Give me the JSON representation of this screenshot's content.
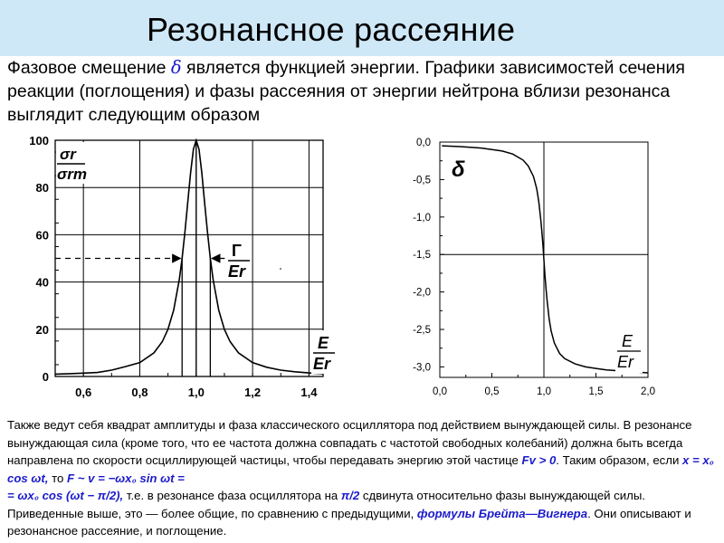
{
  "slide": {
    "title": "Резонансное рассеяние",
    "title_bar_color": "#cfe8f7",
    "intro": {
      "part1": "Фазовое смещение",
      "delta": "δ",
      "part2": "является функцией энергии. Графики зависимостей сечения реакции (поглощения) и фазы рассеяния от энергии нейтрона вблизи резонанса выглядит следующим образом"
    },
    "bottom": {
      "t1": "Также ведут себя квадрат амплитуды и фаза классического осциллятора под действием вынуждающей силы. В резонансе вынуждающая сила (кроме того, что ее частота должна совпадать с частотой свободных колебаний) должна быть всегда направлена по скорости осциллирующей частицы, чтобы передавать энергию этой частице ",
      "f1": "Fv > 0",
      "t2": ". Таким образом, если ",
      "f2": "x = x₀ cos ωt,",
      "t3": " то ",
      "f3": "F ~ v = −ωx₀ sin ωt =",
      "f4": "= ωx₀ cos (ωt − π/2),",
      "t4": " т.е. в резонансе фаза осциллятора на ",
      "f5": "π/2",
      "t5": " сдвинута относительно фазы вынуждающей силы. Приведенные выше, это — более общие, по сравнению с предыдущими, ",
      "link": "формулы Брейта—Вигнера",
      "t6": ". Они описывают и резонансное рассеяние, и поглощение."
    }
  },
  "chart_data": [
    {
      "type": "line",
      "ylabel_num": "σr",
      "ylabel_den": "σrm",
      "xlabel_num": "E",
      "xlabel_den": "Er",
      "width_label_num": "Γ",
      "width_label_den": "Er",
      "x_ticks": [
        "0,6",
        "0,8",
        "1,0",
        "1,2",
        "1,4"
      ],
      "y_ticks": [
        "0",
        "20",
        "40",
        "60",
        "80",
        "100"
      ],
      "xlim": [
        0.5,
        1.45
      ],
      "ylim": [
        0,
        100
      ],
      "grid": true,
      "resonance": {
        "E0": 1.0,
        "gamma": 0.1
      },
      "x": [
        0.5,
        0.55,
        0.6,
        0.65,
        0.7,
        0.75,
        0.8,
        0.85,
        0.88,
        0.9,
        0.92,
        0.94,
        0.95,
        0.96,
        0.97,
        0.98,
        0.99,
        1.0,
        1.01,
        1.02,
        1.03,
        1.04,
        1.05,
        1.06,
        1.08,
        1.1,
        1.12,
        1.15,
        1.2,
        1.25,
        1.3,
        1.35,
        1.4,
        1.45
      ],
      "series": [
        {
          "values": [
            1.0,
            1.2,
            1.4,
            1.7,
            2.7,
            4.2,
            5.9,
            10.0,
            14.8,
            20.0,
            28.1,
            41.0,
            50.0,
            61.0,
            73.5,
            86.2,
            96.2,
            100.0,
            96.2,
            86.2,
            73.5,
            61.0,
            50.0,
            41.0,
            28.1,
            20.0,
            14.8,
            10.0,
            5.9,
            3.9,
            2.7,
            2.0,
            1.5,
            1.2
          ]
        }
      ]
    },
    {
      "type": "line",
      "ylabel": "δ",
      "xlabel_num": "E",
      "xlabel_den": "Er",
      "x_ticks": [
        "0,0",
        "0,5",
        "1,0",
        "1,5",
        "2,0"
      ],
      "y_ticks": [
        "0,0",
        "-0,5",
        "-1,0",
        "-1,5",
        "-2,0",
        "-2,5",
        "-3,0"
      ],
      "xlim": [
        0,
        2
      ],
      "ylim": [
        -3.14,
        0
      ],
      "grid": true,
      "x": [
        0.02,
        0.2,
        0.4,
        0.5,
        0.6,
        0.7,
        0.8,
        0.85,
        0.9,
        0.93,
        0.95,
        0.97,
        0.98,
        0.99,
        1.0,
        1.01,
        1.02,
        1.03,
        1.05,
        1.07,
        1.1,
        1.15,
        1.2,
        1.3,
        1.4,
        1.5,
        1.6,
        1.8,
        2.0
      ],
      "series": [
        {
          "values": [
            -0.05,
            -0.06,
            -0.08,
            -0.1,
            -0.12,
            -0.16,
            -0.24,
            -0.32,
            -0.46,
            -0.62,
            -0.79,
            -1.03,
            -1.19,
            -1.37,
            -1.57,
            -1.77,
            -1.95,
            -2.11,
            -2.36,
            -2.52,
            -2.68,
            -2.82,
            -2.89,
            -2.96,
            -3.0,
            -3.02,
            -3.04,
            -3.06,
            -3.08
          ]
        }
      ]
    }
  ]
}
